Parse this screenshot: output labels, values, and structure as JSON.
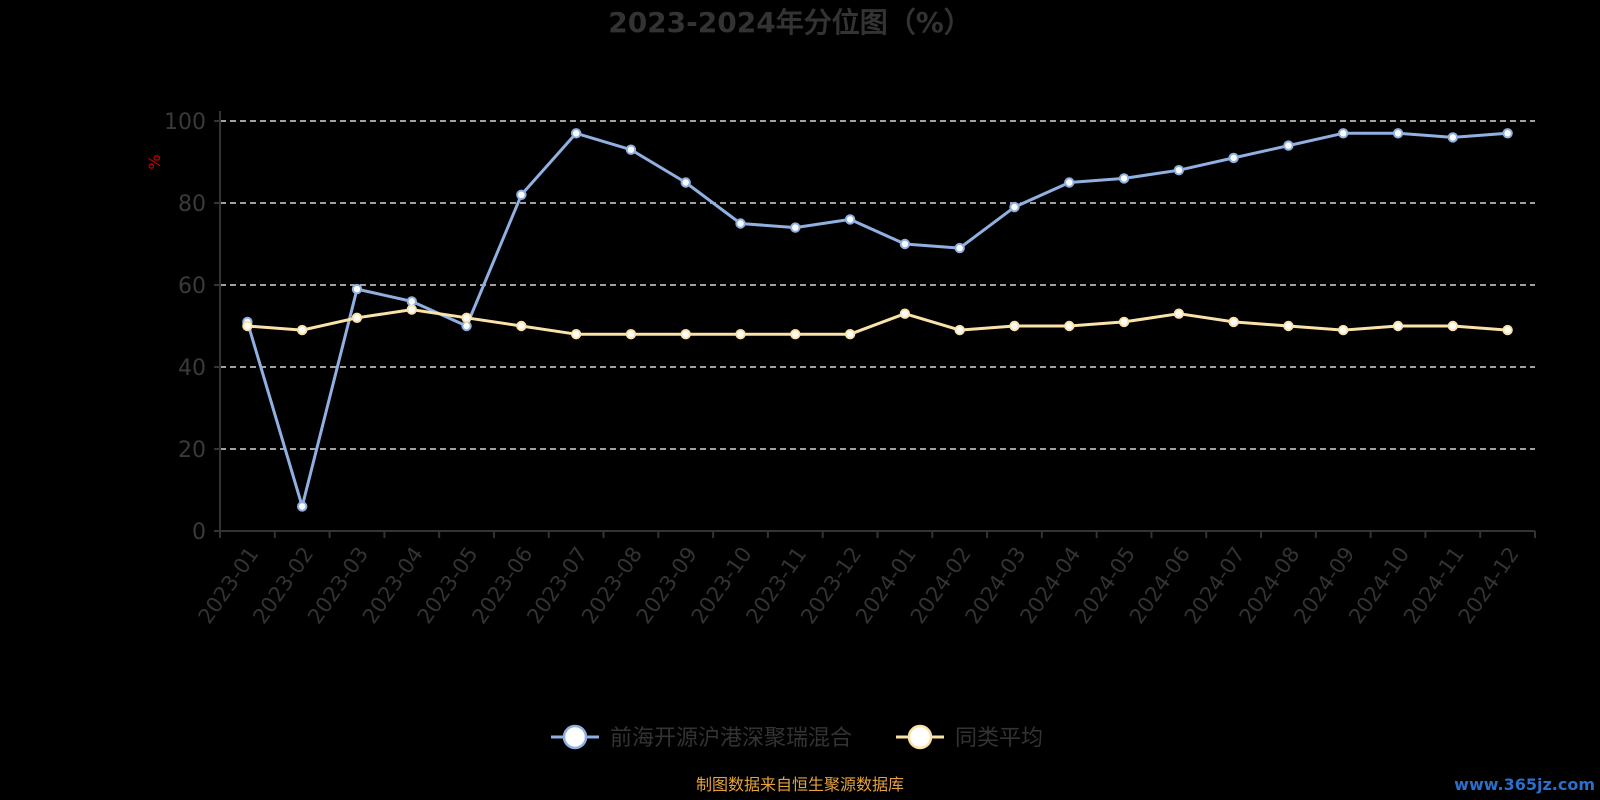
{
  "title": "2023-2024年分位图（%）",
  "source": "制图数据来自恒生聚源数据库",
  "watermark": "www.365jz.com",
  "colors": {
    "background": "#000000",
    "fund": "#8fb0e0",
    "average": "#fbe2a8",
    "grid": "#ffffff",
    "axis": "#333333",
    "ylabel": "#cc0000",
    "source": "#e6a23c"
  },
  "chart_data": {
    "type": "line",
    "title": "2023-2024年分位图（%）",
    "xlabel": "",
    "ylabel": "%",
    "ylim": [
      0,
      100
    ],
    "yticks": [
      0,
      20,
      40,
      60,
      80,
      100
    ],
    "grid": true,
    "legend_position": "bottom",
    "categories": [
      "2023-01",
      "2023-02",
      "2023-03",
      "2023-04",
      "2023-05",
      "2023-06",
      "2023-07",
      "2023-08",
      "2023-09",
      "2023-10",
      "2023-11",
      "2023-12",
      "2024-01",
      "2024-02",
      "2024-03",
      "2024-04",
      "2024-05",
      "2024-06",
      "2024-07",
      "2024-08",
      "2024-09",
      "2024-10",
      "2024-11",
      "2024-12"
    ],
    "series": [
      {
        "name": "前海开源沪港深聚瑞混合",
        "color": "#8fb0e0",
        "values": [
          51,
          6,
          59,
          56,
          50,
          82,
          97,
          93,
          85,
          75,
          74,
          76,
          70,
          69,
          79,
          85,
          86,
          88,
          91,
          94,
          97,
          97,
          96,
          97
        ]
      },
      {
        "name": "同类平均",
        "color": "#fbe2a8",
        "values": [
          50,
          49,
          52,
          54,
          52,
          50,
          48,
          48,
          48,
          48,
          48,
          48,
          53,
          49,
          50,
          50,
          51,
          53,
          51,
          50,
          49,
          50,
          50,
          49
        ]
      }
    ]
  }
}
